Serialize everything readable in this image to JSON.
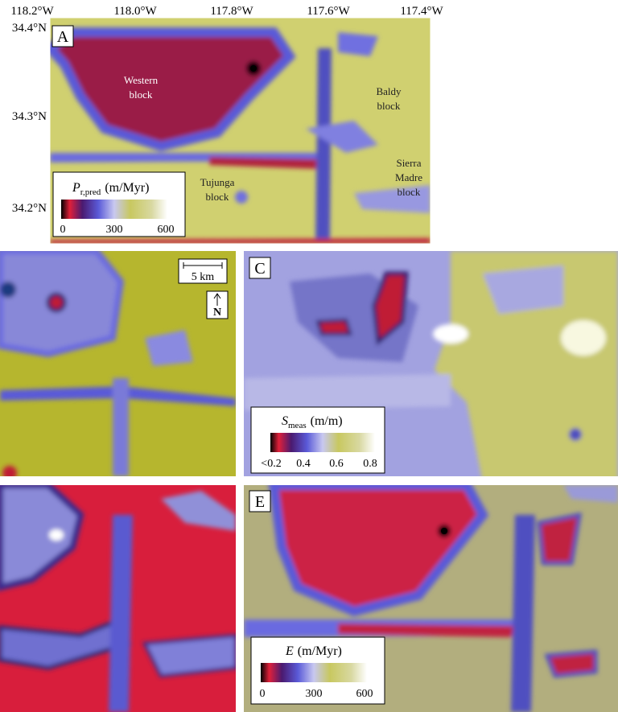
{
  "axes": {
    "x_labels": [
      "118.2°W",
      "118.0°W",
      "117.8°W",
      "117.6°W",
      "117.4°W"
    ],
    "y_labels": [
      "34.4°N",
      "34.3°N",
      "34.2°N"
    ]
  },
  "panels": [
    {
      "label": "A",
      "annotations": [
        "Western",
        "block",
        "Baldy",
        "block",
        "Tujunga",
        "block",
        "Sierra",
        "Madre",
        "block"
      ],
      "legend": {
        "symbol": "P",
        "subscript": "r,pred",
        "unit": "(m/Myr)",
        "ticks": [
          0,
          300,
          600
        ]
      }
    },
    {
      "label": "C",
      "legend": {
        "symbol": "S",
        "subscript": "meas",
        "unit": "(m/m)",
        "ticks": [
          "<0.2",
          0.4,
          0.6,
          0.8
        ]
      }
    },
    {
      "label": "E",
      "legend": {
        "symbol": "E",
        "unit": "(m/Myr)",
        "ticks": [
          0,
          300,
          600
        ]
      }
    }
  ],
  "scale_bar": "5 km",
  "north": "N"
}
